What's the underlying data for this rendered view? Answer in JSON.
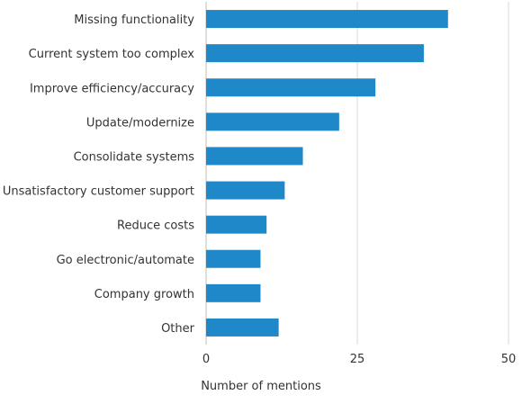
{
  "chart_data": {
    "type": "bar",
    "orientation": "horizontal",
    "categories": [
      "Missing functionality",
      "Current system too complex",
      "Improve efficiency/accuracy",
      "Update/modernize",
      "Consolidate systems",
      "Unsatisfactory customer support",
      "Reduce costs",
      "Go electronic/automate",
      "Company growth",
      "Other"
    ],
    "values": [
      40,
      36,
      28,
      22,
      16,
      13,
      10,
      9,
      9,
      12
    ],
    "xlabel": "Number of mentions",
    "ylabel": "",
    "xlim": [
      0,
      50
    ],
    "xticks": [
      "0",
      "25",
      "50"
    ],
    "grid": "vertical",
    "legend": "none",
    "bar_color": "#1f88c9",
    "grid_color": "#d9d9d9",
    "axis_color": "#bfbfbf"
  }
}
